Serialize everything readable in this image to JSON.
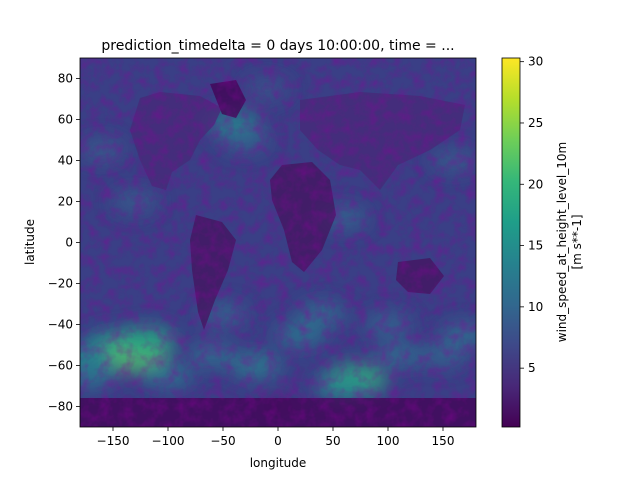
{
  "chart_data": {
    "type": "heatmap",
    "title": "prediction_timedelta = 0 days 10:00:00, time = ...",
    "xlabel": "longitude",
    "ylabel": "latitude",
    "xlim": [
      -180,
      180
    ],
    "ylim": [
      -90,
      90
    ],
    "x_ticks": [
      -150,
      -100,
      -50,
      0,
      50,
      100,
      150
    ],
    "x_tick_labels": [
      "−150",
      "−100",
      "−50",
      "0",
      "50",
      "100",
      "150"
    ],
    "y_ticks": [
      -80,
      -60,
      -40,
      -20,
      0,
      20,
      40,
      60,
      80
    ],
    "y_tick_labels": [
      "−80",
      "−60",
      "−40",
      "−20",
      "0",
      "20",
      "40",
      "60",
      "80"
    ],
    "colorbar": {
      "label_line1": "wind_speed_at_height_level_10m",
      "label_line2": "[m s**-1]",
      "range": [
        0.2,
        30.3
      ],
      "ticks": [
        5,
        10,
        15,
        20,
        25,
        30
      ],
      "tick_labels": [
        "5",
        "10",
        "15",
        "20",
        "25",
        "30"
      ],
      "colormap": "viridis"
    },
    "colormap_stops": [
      "#440154",
      "#482878",
      "#3e4989",
      "#31688e",
      "#26828e",
      "#1f9e89",
      "#35b779",
      "#6ece58",
      "#b5de2b",
      "#fde725"
    ],
    "features": [
      {
        "lon": -150,
        "lat": -50,
        "value": 16
      },
      {
        "lon": -130,
        "lat": -55,
        "value": 22
      },
      {
        "lon": -120,
        "lat": -48,
        "value": 18
      },
      {
        "lon": -175,
        "lat": -57,
        "value": 14
      },
      {
        "lon": -170,
        "lat": -65,
        "value": 12
      },
      {
        "lon": -60,
        "lat": -55,
        "value": 11
      },
      {
        "lon": -20,
        "lat": -60,
        "value": 13
      },
      {
        "lon": 20,
        "lat": -45,
        "value": 12
      },
      {
        "lon": 70,
        "lat": -67,
        "value": 20
      },
      {
        "lon": 60,
        "lat": -70,
        "value": 15
      },
      {
        "lon": 110,
        "lat": -55,
        "value": 11
      },
      {
        "lon": 150,
        "lat": -55,
        "value": 10
      },
      {
        "lon": 170,
        "lat": -45,
        "value": 11
      },
      {
        "lon": -40,
        "lat": 58,
        "value": 14
      },
      {
        "lon": -30,
        "lat": 50,
        "value": 10
      },
      {
        "lon": -160,
        "lat": 45,
        "value": 9
      },
      {
        "lon": 160,
        "lat": 40,
        "value": 9
      },
      {
        "lon": -130,
        "lat": 20,
        "value": 9
      },
      {
        "lon": 60,
        "lat": 12,
        "value": 10
      },
      {
        "lon": -50,
        "lat": -35,
        "value": 10
      },
      {
        "lon": 40,
        "lat": -35,
        "value": 11
      },
      {
        "lon": 100,
        "lat": -40,
        "value": 10
      },
      {
        "lon": -100,
        "lat": -65,
        "value": 12
      },
      {
        "lon": -10,
        "lat": 75,
        "value": 8
      },
      {
        "lon": 0,
        "lat": -80,
        "value": 4
      }
    ]
  }
}
